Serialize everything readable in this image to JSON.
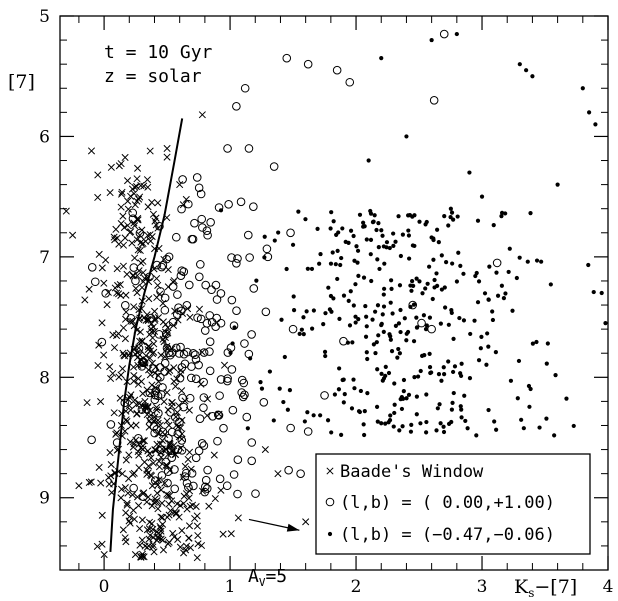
{
  "chart_data": {
    "type": "scatter",
    "title": "",
    "xlabel": "Ks−[7]",
    "ylabel": "[7]",
    "xlim": [
      -0.35,
      4.0
    ],
    "ylim": [
      9.6,
      5.0
    ],
    "y_inverted": true,
    "x_ticks": [
      0,
      1,
      2,
      3,
      4
    ],
    "x_tick_labels": [
      "0",
      "1",
      "2",
      "3",
      "4"
    ],
    "y_ticks": [
      5,
      6,
      7,
      8,
      9
    ],
    "y_tick_labels": [
      "5",
      "6",
      "7",
      "8",
      "9"
    ],
    "grid": false,
    "legend_position": "bottom-right",
    "annotations": {
      "age": "t = 10 Gyr",
      "metallicity": "z = solar",
      "extinction_label": "A",
      "extinction_sub": "V",
      "extinction_value": "=5",
      "extinction_vector": {
        "x_start": 1.15,
        "y_start": 9.18,
        "x_end": 1.55,
        "y_end": 9.27
      }
    },
    "isochrone": {
      "x": [
        0.05,
        0.07,
        0.1,
        0.13,
        0.16,
        0.2,
        0.25,
        0.32,
        0.4,
        0.48,
        0.56,
        0.62
      ],
      "y": [
        9.45,
        9.1,
        8.8,
        8.5,
        8.2,
        7.9,
        7.6,
        7.3,
        7.0,
        6.65,
        6.2,
        5.85
      ]
    },
    "series": [
      {
        "name": "Baade's Window",
        "marker": "cross",
        "cluster": {
          "x_center": 0.35,
          "x_sd": 0.23,
          "y_min": 6.1,
          "y_max": 9.5,
          "count": 520
        },
        "extra": {
          "x": [
            -0.3,
            -0.25,
            -0.1,
            -0.05,
            0.78,
            0.1,
            0.15,
            -0.2,
            0.5,
            0.6,
            1.28,
            1.38,
            1.6
          ],
          "y": [
            6.62,
            6.82,
            6.12,
            6.32,
            5.82,
            7.3,
            7.8,
            8.9,
            6.1,
            6.4,
            8.6,
            8.8,
            9.2
          ]
        }
      },
      {
        "name": "(l,b) = ( 0.00,+1.00)",
        "marker": "open-circle",
        "cluster": {
          "x_center": 0.65,
          "x_sd": 0.28,
          "y_min": 6.3,
          "y_max": 9.0,
          "count": 210
        },
        "extra": {
          "x": [
            1.45,
            1.62,
            1.85,
            1.95,
            1.05,
            1.12,
            1.15,
            1.35,
            1.48,
            1.3,
            1.5,
            1.56,
            1.62,
            1.75,
            2.62,
            2.7,
            3.12,
            2.45,
            2.52,
            2.6,
            1.9,
            0.98
          ],
          "y": [
            5.35,
            5.4,
            5.45,
            5.55,
            5.75,
            5.6,
            6.1,
            6.25,
            6.8,
            7.0,
            7.6,
            8.8,
            8.45,
            8.15,
            5.7,
            5.15,
            7.05,
            7.4,
            7.55,
            7.6,
            7.7,
            6.1
          ]
        }
      },
      {
        "name": "(l,b) = (−0.47,−0.06)",
        "marker": "dot",
        "cluster": {
          "x_center": 2.35,
          "x_sd": 0.55,
          "y_min": 6.6,
          "y_max": 8.5,
          "count": 380
        },
        "extra": {
          "x": [
            2.6,
            2.8,
            2.2,
            3.3,
            3.35,
            3.4,
            3.8,
            3.85,
            3.9,
            2.4,
            2.1,
            2.9,
            1.5,
            1.65,
            3.0,
            3.6,
            3.95,
            3.98
          ],
          "y": [
            5.2,
            5.15,
            5.35,
            5.4,
            5.45,
            5.5,
            5.6,
            5.8,
            5.9,
            6.0,
            6.2,
            6.3,
            6.9,
            7.1,
            6.5,
            6.4,
            7.3,
            7.55
          ],
          "y_extra_note": ""
        }
      }
    ]
  }
}
